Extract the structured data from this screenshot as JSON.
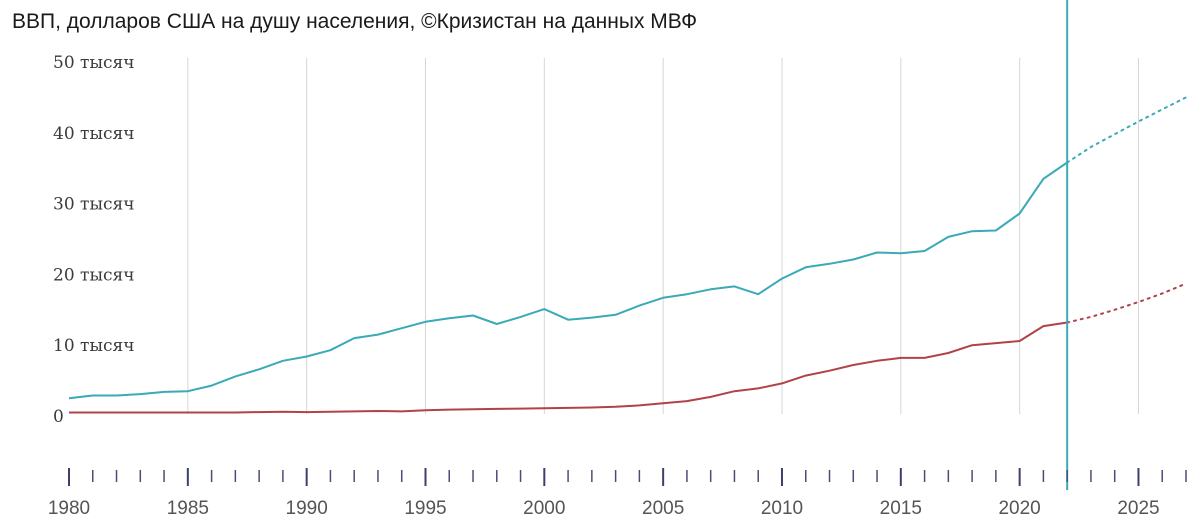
{
  "chart_data": {
    "type": "line",
    "title": "ВВП, долларов США на душу населения, ©Кризистан на данных МВФ",
    "xlabel": "",
    "ylabel": "",
    "xlim": [
      1980,
      2027
    ],
    "ylim": [
      0,
      50000
    ],
    "y_ticks": [
      {
        "value": 50000,
        "label": "50 тысяч"
      },
      {
        "value": 40000,
        "label": "40 тысяч"
      },
      {
        "value": 30000,
        "label": "30 тысяч"
      },
      {
        "value": 20000,
        "label": "20 тысяч"
      },
      {
        "value": 10000,
        "label": "10 тысяч"
      },
      {
        "value": 0,
        "label": "0"
      }
    ],
    "x_ticks": [
      1980,
      1985,
      1990,
      1995,
      2000,
      2005,
      2010,
      2015,
      2020,
      2025
    ],
    "vertical_gridlines": [
      1985,
      1990,
      1995,
      2000,
      2005,
      2010,
      2015,
      2020,
      2025
    ],
    "grid": true,
    "marker_year": 2022,
    "x": [
      1980,
      1981,
      1982,
      1983,
      1984,
      1985,
      1986,
      1987,
      1988,
      1989,
      1990,
      1991,
      1992,
      1993,
      1994,
      1995,
      1996,
      1997,
      1998,
      1999,
      2000,
      2001,
      2002,
      2003,
      2004,
      2005,
      2006,
      2007,
      2008,
      2009,
      2010,
      2011,
      2012,
      2013,
      2014,
      2015,
      2016,
      2017,
      2018,
      2019,
      2020,
      2021,
      2022
    ],
    "forecast_x": [
      2022,
      2023,
      2024,
      2025,
      2026,
      2027
    ],
    "series": [
      {
        "color": "#3aa9b8",
        "values": [
          2500,
          2900,
          2900,
          3100,
          3400,
          3500,
          4300,
          5600,
          6600,
          7800,
          8400,
          9300,
          11000,
          11500,
          12400,
          13300,
          13800,
          14200,
          13000,
          14000,
          15100,
          13600,
          13900,
          14300,
          15600,
          16700,
          17200,
          17900,
          18300,
          17200,
          19400,
          21000,
          21500,
          22100,
          23100,
          23000,
          23300,
          25300,
          26100,
          26200,
          28600,
          33500,
          35800
        ],
        "forecast": [
          35800,
          38000,
          39800,
          41600,
          43300,
          45000
        ]
      },
      {
        "color": "#b0434a",
        "values": [
          500,
          500,
          500,
          500,
          500,
          500,
          500,
          500,
          550,
          600,
          550,
          600,
          650,
          700,
          650,
          800,
          900,
          950,
          1000,
          1050,
          1100,
          1150,
          1200,
          1300,
          1500,
          1800,
          2100,
          2700,
          3500,
          3900,
          4600,
          5700,
          6400,
          7200,
          7800,
          8200,
          8200,
          8900,
          10000,
          10300,
          10600,
          12700,
          13200
        ],
        "forecast": [
          13200,
          14000,
          15000,
          16100,
          17300,
          18700
        ]
      }
    ]
  }
}
